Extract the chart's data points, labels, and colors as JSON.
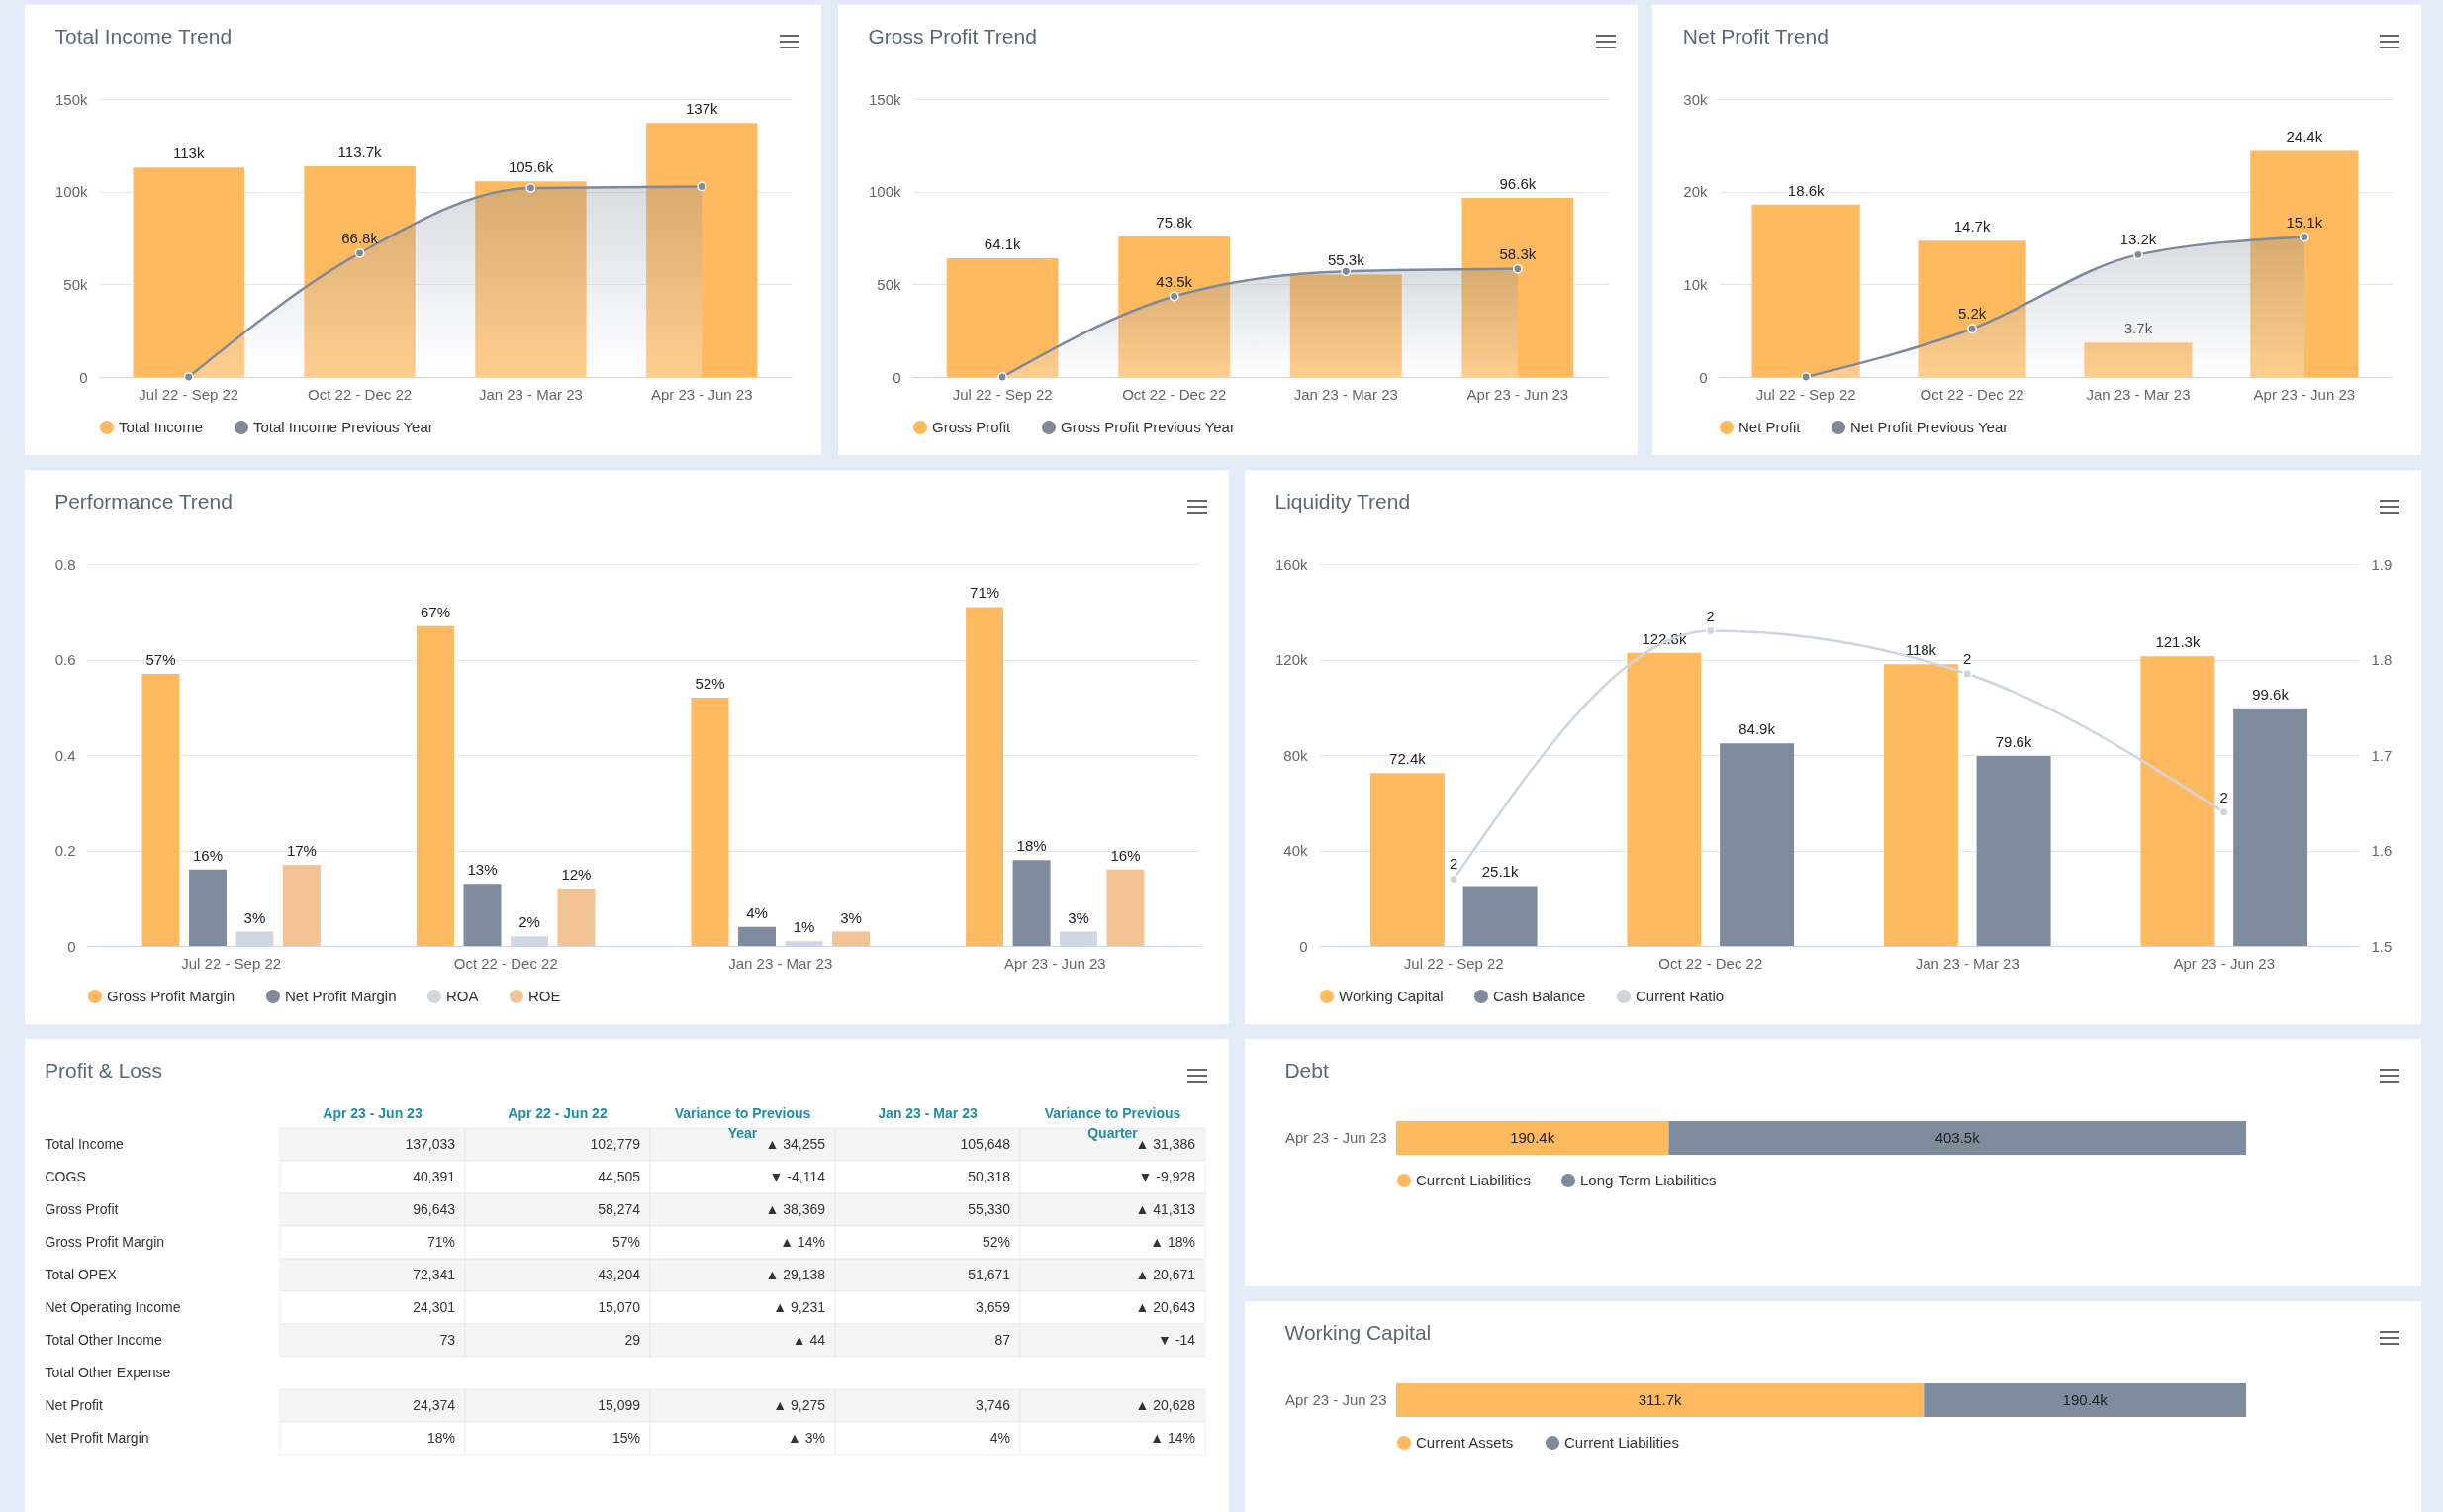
{
  "chart_data": [
    {
      "type": "bar",
      "title": "Total Income Trend",
      "categories": [
        "Jul 22 - Sep 22",
        "Oct 22 - Dec 22",
        "Jan 23 - Mar 23",
        "Apr 23 - Jun 23"
      ],
      "series": [
        {
          "name": "Total Income",
          "type": "bar",
          "color": "#ffb95e",
          "values": [
            113000,
            113700,
            105600,
            137000
          ],
          "value_labels": [
            "113k",
            "113.7k",
            "105.6k",
            "137k"
          ]
        },
        {
          "name": "Total Income Previous Year",
          "type": "area",
          "color": "#7d8a9c",
          "values": [
            0,
            66800,
            102000,
            102800
          ],
          "value_labels": [
            null,
            "66.8k",
            null,
            null
          ]
        }
      ],
      "ylim": [
        0,
        150000
      ],
      "yticks": [
        0,
        {
          "value": 50000,
          "label": "50k"
        },
        {
          "value": 100000,
          "label": "100k"
        },
        {
          "value": 150000,
          "label": "150k"
        }
      ],
      "grid": "y",
      "legend": "bottom",
      "marker": "circle"
    },
    {
      "type": "bar",
      "title": "Gross Profit Trend",
      "categories": [
        "Jul 22 - Sep 22",
        "Oct 22 - Dec 22",
        "Jan 23 - Mar 23",
        "Apr 23 - Jun 23"
      ],
      "series": [
        {
          "name": "Gross Profit",
          "type": "bar",
          "color": "#ffb95e",
          "values": [
            64100,
            75800,
            55300,
            96600
          ],
          "value_labels": [
            "64.1k",
            "75.8k",
            "55.3k",
            "96.6k"
          ]
        },
        {
          "name": "Gross Profit Previous Year",
          "type": "area",
          "color": "#7d8a9c",
          "values": [
            0,
            43500,
            57000,
            58300
          ],
          "value_labels": [
            null,
            "43.5k",
            null,
            "58.3k"
          ]
        }
      ],
      "ylim": [
        0,
        150000
      ],
      "yticks": [
        0,
        {
          "value": 50000,
          "label": "50k"
        },
        {
          "value": 100000,
          "label": "100k"
        },
        {
          "value": 150000,
          "label": "150k"
        }
      ],
      "grid": "y",
      "legend": "bottom",
      "marker": "circle"
    },
    {
      "type": "bar",
      "title": "Net Profit Trend",
      "categories": [
        "Jul 22 - Sep 22",
        "Oct 22 - Dec 22",
        "Jan 23 - Mar 23",
        "Apr 23 - Jun 23"
      ],
      "series": [
        {
          "name": "Net Profit",
          "type": "bar",
          "color": "#ffb95e",
          "values": [
            18600,
            14700,
            3700,
            24400
          ],
          "value_labels": [
            "18.6k",
            "14.7k",
            "3.7k",
            "24.4k"
          ]
        },
        {
          "name": "Net Profit Previous Year",
          "type": "area",
          "color": "#7d8a9c",
          "values": [
            0,
            5200,
            13200,
            15100
          ],
          "value_labels": [
            null,
            "5.2k",
            "13.2k",
            "15.1k"
          ]
        }
      ],
      "ylim": [
        0,
        30000
      ],
      "yticks": [
        0,
        {
          "value": 10000,
          "label": "10k"
        },
        {
          "value": 20000,
          "label": "20k"
        },
        {
          "value": 30000,
          "label": "30k"
        }
      ],
      "grid": "y",
      "legend": "bottom",
      "marker": "circle"
    },
    {
      "type": "bar",
      "title": "Performance Trend",
      "categories": [
        "Jul 22 - Sep 22",
        "Oct 22 - Dec 22",
        "Jan 23 - Mar 23",
        "Apr 23 - Jun 23"
      ],
      "series": [
        {
          "name": "Gross Profit Margin",
          "color": "#ffb95e",
          "values": [
            0.57,
            0.67,
            0.52,
            0.71
          ],
          "value_labels": [
            "57%",
            "67%",
            "52%",
            "71%"
          ]
        },
        {
          "name": "Net Profit Margin",
          "color": "#7f8c9d",
          "values": [
            0.16,
            0.13,
            0.04,
            0.18
          ],
          "value_labels": [
            "16%",
            "13%",
            "4%",
            "18%"
          ]
        },
        {
          "name": "ROA",
          "color": "#cfd7e2",
          "values": [
            0.03,
            0.02,
            0.01,
            0.03
          ],
          "value_labels": [
            "3%",
            "2%",
            "1%",
            "3%"
          ]
        },
        {
          "name": "ROE",
          "color": "#f2c394",
          "values": [
            0.17,
            0.12,
            0.03,
            0.16
          ],
          "value_labels": [
            "17%",
            "12%",
            "3%",
            "16%"
          ]
        }
      ],
      "ylim": [
        0,
        0.8
      ],
      "yticks": [
        0,
        0.2,
        0.4,
        0.6,
        0.8
      ],
      "grid": "y",
      "legend": "bottom"
    },
    {
      "type": "bar",
      "title": "Liquidity Trend",
      "categories": [
        "Jul 22 - Sep 22",
        "Oct 22 - Dec 22",
        "Jan 23 - Mar 23",
        "Apr 23 - Jun 23"
      ],
      "series": [
        {
          "name": "Working Capital",
          "type": "bar",
          "color": "#ffb95e",
          "values": [
            72400,
            122800,
            118000,
            121300
          ],
          "value_labels": [
            "72.4k",
            "122.8k",
            "118k",
            "121.3k"
          ]
        },
        {
          "name": "Cash Balance",
          "type": "bar",
          "color": "#7f8c9d",
          "values": [
            25100,
            84900,
            79600,
            99600
          ],
          "value_labels": [
            "25.1k",
            "84.9k",
            "79.6k",
            "99.6k"
          ]
        },
        {
          "name": "Current Ratio",
          "type": "line",
          "axis": "y2",
          "color": "#cdd5e1",
          "values": [
            1.57,
            1.83,
            1.785,
            1.64
          ],
          "value_labels": [
            "2",
            "2",
            "2",
            "2"
          ]
        }
      ],
      "ylim": [
        0,
        160000
      ],
      "yticks": [
        0,
        {
          "value": 40000,
          "label": "40k"
        },
        {
          "value": 80000,
          "label": "80k"
        },
        {
          "value": 120000,
          "label": "120k"
        },
        {
          "value": 160000,
          "label": "160k"
        }
      ],
      "y2lim": [
        1.5,
        1.9
      ],
      "y2ticks": [
        1.5,
        1.6,
        1.7,
        1.8,
        1.9
      ],
      "grid": "y",
      "legend": "bottom",
      "marker": "circle"
    },
    {
      "type": "heatmap",
      "title": "Profit & Loss",
      "categories": [
        "Apr 23 - Jun 23",
        "Apr 22 - Jun 22",
        "Variance to Previous Year",
        "Jan 23 - Mar 23",
        "Variance to Previous Quarter"
      ],
      "y_categories": [
        "Total Income",
        "COGS",
        "Gross Profit",
        "Gross Profit Margin",
        "Total OPEX",
        "Net Operating Income",
        "Total Other Income",
        "Total Other Expense",
        "Net Profit",
        "Net Profit Margin"
      ],
      "cells": [
        [
          137033,
          102779,
          34255,
          105648,
          31386
        ],
        [
          40391,
          44505,
          -4114,
          50318,
          -9928
        ],
        [
          96643,
          58274,
          38369,
          55330,
          41313
        ],
        [
          71,
          57,
          14,
          52,
          18
        ],
        [
          72341,
          43204,
          29138,
          51671,
          20671
        ],
        [
          24301,
          15070,
          9231,
          3659,
          20643
        ],
        [
          73,
          29,
          44,
          87,
          -14
        ],
        [
          null,
          null,
          null,
          null,
          null
        ],
        [
          24374,
          15099,
          9275,
          3746,
          20628
        ],
        [
          18,
          15,
          3,
          4,
          14
        ]
      ],
      "cell_labels": [
        [
          "137,033",
          "102,779",
          "▲ 34,255",
          "105,648",
          "▲ 31,386"
        ],
        [
          "40,391",
          "44,505",
          "▼ -4,114",
          "50,318",
          "▼ -9,928"
        ],
        [
          "96,643",
          "58,274",
          "▲ 38,369",
          "55,330",
          "▲ 41,313"
        ],
        [
          "71%",
          "57%",
          "▲ 14%",
          "52%",
          "▲ 18%"
        ],
        [
          "72,341",
          "43,204",
          "▲ 29,138",
          "51,671",
          "▲ 20,671"
        ],
        [
          "24,301",
          "15,070",
          "▲ 9,231",
          "3,659",
          "▲ 20,643"
        ],
        [
          "73",
          "29",
          "▲ 44",
          "87",
          "▼ -14"
        ],
        [
          null,
          null,
          null,
          null,
          null
        ],
        [
          "24,374",
          "15,099",
          "▲ 9,275",
          "3,746",
          "▲ 20,628"
        ],
        [
          "18%",
          "15%",
          "▲ 3%",
          "4%",
          "▲ 14%"
        ]
      ]
    },
    {
      "type": "bar",
      "title": "Debt",
      "orientation": "horizontal",
      "stacked": true,
      "categories": [
        "Apr 23 - Jun 23"
      ],
      "series": [
        {
          "name": "Current Liabilities",
          "color": "#ffb95e",
          "values": [
            190400
          ],
          "value_labels": [
            "190.4k"
          ]
        },
        {
          "name": "Long-Term Liabilities",
          "color": "#7f8c9d",
          "values": [
            403500
          ],
          "value_labels": [
            "403.5k"
          ]
        }
      ],
      "tick_labels": "y",
      "legend": "bottom"
    },
    {
      "type": "bar",
      "title": "Working Capital",
      "orientation": "horizontal",
      "stacked": true,
      "categories": [
        "Apr 23 - Jun 23"
      ],
      "series": [
        {
          "name": "Current Assets",
          "color": "#ffb95e",
          "values": [
            311700
          ],
          "value_labels": [
            "311.7k"
          ]
        },
        {
          "name": "Current Liabilities",
          "color": "#7f8c9d",
          "values": [
            190400
          ],
          "value_labels": [
            "190.4k"
          ]
        }
      ],
      "tick_labels": "y",
      "legend": "bottom"
    }
  ]
}
